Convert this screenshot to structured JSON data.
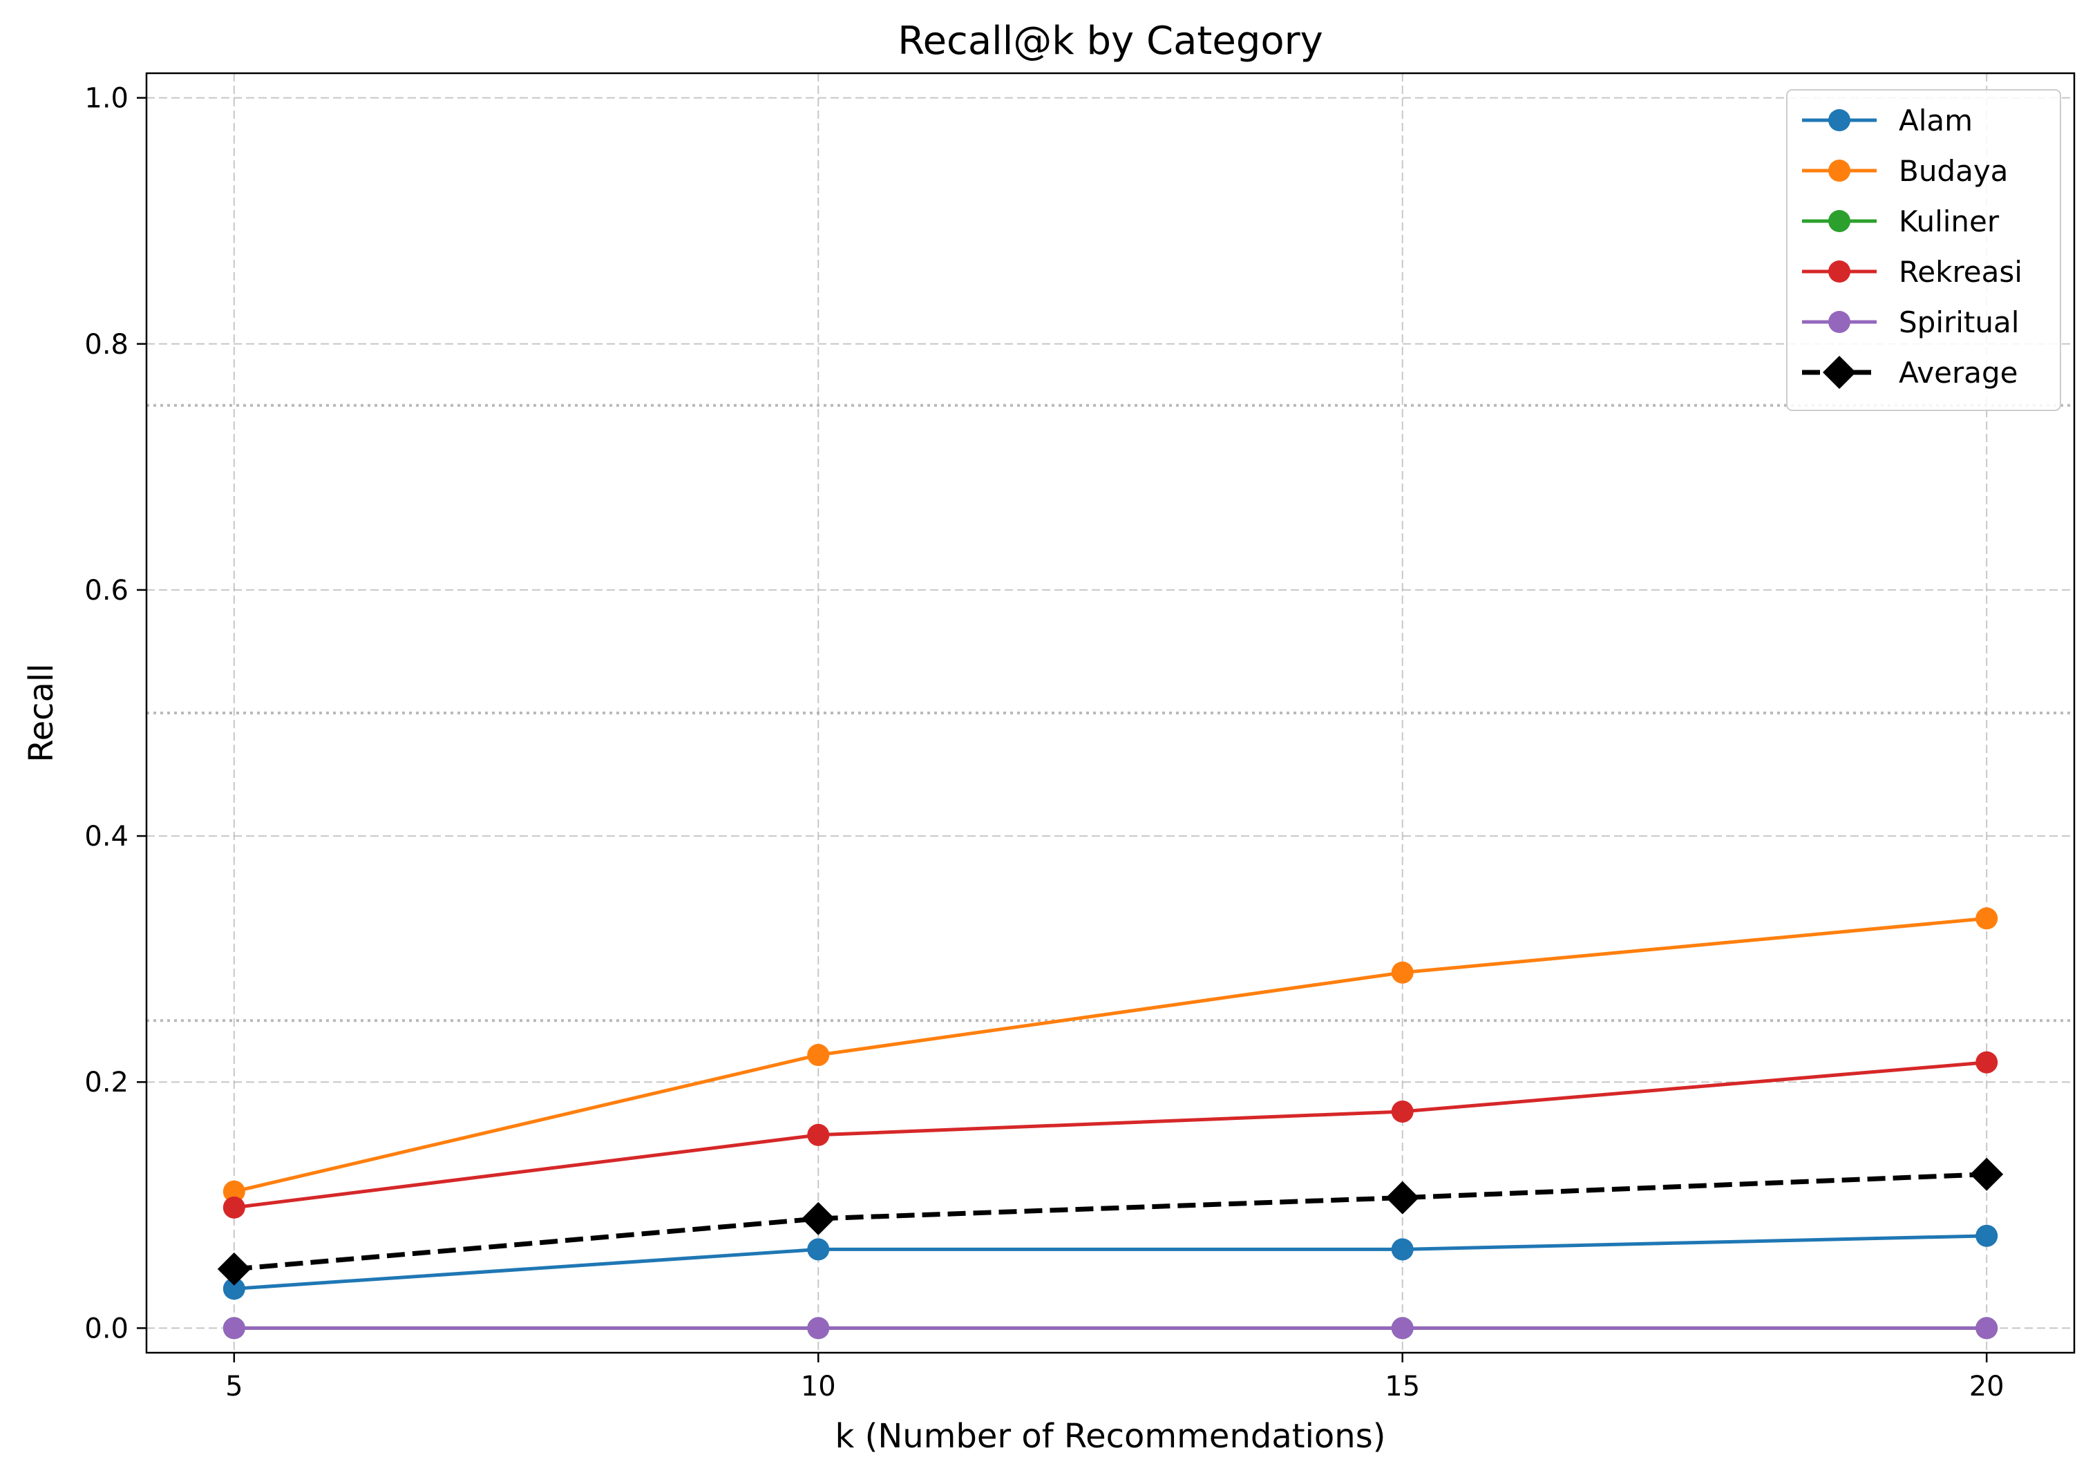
{
  "chart_data": {
    "type": "line",
    "title": "Recall@k by Category",
    "xlabel": "k (Number of Recommendations)",
    "ylabel": "Recall",
    "x": [
      5,
      10,
      15,
      20
    ],
    "xlim": [
      4.25,
      20.75
    ],
    "ylim": [
      -0.02,
      1.02
    ],
    "x_ticks": [
      "5",
      "10",
      "15",
      "20"
    ],
    "y_ticks": [
      "0.0",
      "0.2",
      "0.4",
      "0.6",
      "0.8",
      "1.0"
    ],
    "grid": true,
    "reference_lines": [
      0.25,
      0.5,
      0.75
    ],
    "legend_position": "top-right",
    "series": [
      {
        "name": "Alam",
        "color": "#1f77b4",
        "marker": "circle",
        "style": "solid",
        "values": [
          0.032,
          0.064,
          0.064,
          0.075
        ]
      },
      {
        "name": "Budaya",
        "color": "#ff7f0e",
        "marker": "circle",
        "style": "solid",
        "values": [
          0.111,
          0.222,
          0.289,
          0.333
        ]
      },
      {
        "name": "Kuliner",
        "color": "#2ca02c",
        "marker": "circle",
        "style": "solid",
        "values": [
          0.0,
          0.0,
          0.0,
          0.0
        ]
      },
      {
        "name": "Rekreasi",
        "color": "#d62728",
        "marker": "circle",
        "style": "solid",
        "values": [
          0.098,
          0.157,
          0.176,
          0.216
        ]
      },
      {
        "name": "Spiritual",
        "color": "#9467bd",
        "marker": "circle",
        "style": "solid",
        "values": [
          0.0,
          0.0,
          0.0,
          0.0
        ]
      },
      {
        "name": "Average",
        "color": "#000000",
        "marker": "diamond",
        "style": "dashed",
        "values": [
          0.048,
          0.089,
          0.106,
          0.125
        ]
      }
    ]
  }
}
